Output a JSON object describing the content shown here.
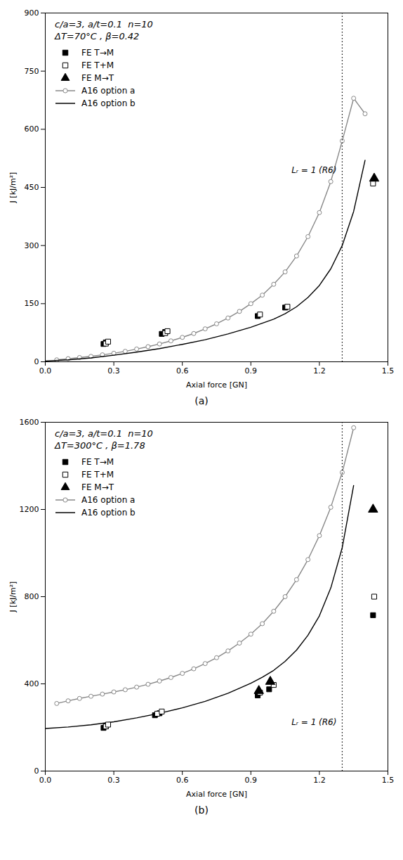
{
  "chart_data": [
    {
      "type": "line",
      "title": "c/a=3, a/t=0.1  n=10",
      "subtitle": "ΔT=70°C , β=0.42",
      "caption": "(a)",
      "xlabel": "Axial force [GN]",
      "ylabel": "J [kJ/m²]",
      "xlim": [
        0,
        1.5
      ],
      "ylim": [
        0,
        900
      ],
      "xticks": [
        {
          "value": 0,
          "label": "0.0"
        },
        0.3,
        0.6,
        0.9,
        1.2,
        1.5
      ],
      "yticks": [
        0,
        150,
        300,
        450,
        600,
        750,
        900
      ],
      "grid": false,
      "legend": "upper left",
      "vlines": [
        {
          "x": 1.3,
          "line_style": "dotted",
          "label": "Lᵣ = 1 (R6)",
          "label_y": 495
        }
      ],
      "series": [
        {
          "name": "FE T→M",
          "type": "scatter",
          "marker": "filled_square",
          "color": "#000000",
          "x": [
            0.255,
            0.265,
            0.51,
            0.525,
            0.93,
            1.05
          ],
          "values": [
            46,
            50,
            72,
            77,
            118,
            140
          ]
        },
        {
          "name": "FE T+M",
          "type": "scatter",
          "marker": "open_square",
          "color": "#000000",
          "x": [
            0.265,
            0.275,
            0.525,
            0.535,
            0.94,
            1.06,
            1.435
          ],
          "values": [
            47,
            52,
            74,
            79,
            122,
            142,
            460
          ]
        },
        {
          "name": "FE M→T",
          "type": "scatter",
          "marker": "filled_triangle",
          "color": "#000000",
          "x": [
            1.44
          ],
          "values": [
            473
          ]
        },
        {
          "name": "A16 option a",
          "type": "line",
          "marker": "open_circle",
          "line_style": "solid",
          "color": "#888888",
          "x": [
            0.05,
            0.1,
            0.15,
            0.2,
            0.25,
            0.3,
            0.35,
            0.4,
            0.45,
            0.5,
            0.55,
            0.6,
            0.65,
            0.7,
            0.75,
            0.8,
            0.85,
            0.9,
            0.95,
            1.0,
            1.05,
            1.1,
            1.15,
            1.2,
            1.25,
            1.3,
            1.35,
            1.4
          ],
          "values": [
            5,
            8,
            11,
            14,
            18,
            22,
            27,
            33,
            39,
            46,
            54,
            63,
            73,
            85,
            98,
            113,
            130,
            150,
            172,
            200,
            232,
            273,
            323,
            385,
            465,
            570,
            680,
            640
          ]
        },
        {
          "name": "A16 option b",
          "type": "line",
          "line_style": "solid",
          "color": "#000000",
          "x": [
            0,
            0.1,
            0.2,
            0.3,
            0.4,
            0.5,
            0.6,
            0.7,
            0.8,
            0.9,
            1.0,
            1.05,
            1.1,
            1.15,
            1.2,
            1.25,
            1.3,
            1.35,
            1.4
          ],
          "values": [
            2,
            5,
            10,
            17,
            25,
            34,
            45,
            57,
            72,
            89,
            110,
            124,
            142,
            166,
            197,
            240,
            300,
            388,
            520
          ]
        }
      ]
    },
    {
      "type": "line",
      "title": "c/a=3, a/t=0.1  n=10",
      "subtitle": "ΔT=300°C , β=1.78",
      "caption": "(b)",
      "xlabel": "Axial force [GN]",
      "ylabel": "J [kJ/m²]",
      "xlim": [
        0,
        1.5
      ],
      "ylim": [
        0,
        1600
      ],
      "xticks": [
        {
          "value": 0,
          "label": "0.0"
        },
        0.3,
        0.6,
        0.9,
        1.2,
        1.5
      ],
      "yticks": [
        0,
        400,
        800,
        1200,
        1600
      ],
      "grid": false,
      "legend": "upper left",
      "vlines": [
        {
          "x": 1.3,
          "line_style": "dotted",
          "label": "Lᵣ = 1 (R6)",
          "label_y": 224
        }
      ],
      "series": [
        {
          "name": "FE T→M",
          "type": "scatter",
          "marker": "filled_square",
          "color": "#000000",
          "x": [
            0.255,
            0.265,
            0.48,
            0.5,
            0.93,
            0.98,
            1.435
          ],
          "values": [
            198,
            205,
            256,
            265,
            347,
            375,
            715
          ]
        },
        {
          "name": "FE T+M",
          "type": "scatter",
          "marker": "open_square",
          "color": "#000000",
          "x": [
            0.265,
            0.275,
            0.49,
            0.51,
            0.94,
            1.0,
            1.44
          ],
          "values": [
            205,
            213,
            263,
            273,
            360,
            395,
            800
          ]
        },
        {
          "name": "FE M→T",
          "type": "scatter",
          "marker": "filled_triangle",
          "color": "#000000",
          "x": [
            0.935,
            0.985,
            1.435
          ],
          "values": [
            368,
            410,
            1200
          ]
        },
        {
          "name": "A16 option a",
          "type": "line",
          "marker": "open_circle",
          "line_style": "solid",
          "color": "#888888",
          "x": [
            0.05,
            0.1,
            0.15,
            0.2,
            0.25,
            0.3,
            0.35,
            0.4,
            0.45,
            0.5,
            0.55,
            0.6,
            0.65,
            0.7,
            0.75,
            0.8,
            0.85,
            0.9,
            0.95,
            1.0,
            1.05,
            1.1,
            1.15,
            1.2,
            1.25,
            1.3,
            1.35
          ],
          "values": [
            310,
            322,
            333,
            343,
            353,
            363,
            373,
            385,
            398,
            413,
            429,
            448,
            469,
            493,
            520,
            551,
            587,
            628,
            676,
            733,
            800,
            878,
            970,
            1080,
            1210,
            1370,
            1575
          ]
        },
        {
          "name": "A16 option b",
          "type": "line",
          "line_style": "solid",
          "color": "#000000",
          "x": [
            0,
            0.1,
            0.2,
            0.3,
            0.4,
            0.5,
            0.6,
            0.7,
            0.8,
            0.9,
            0.95,
            1.0,
            1.05,
            1.1,
            1.15,
            1.2,
            1.25,
            1.3,
            1.35
          ],
          "values": [
            195,
            202,
            212,
            226,
            244,
            265,
            290,
            320,
            357,
            403,
            430,
            462,
            503,
            555,
            623,
            712,
            840,
            1025,
            1310
          ]
        }
      ]
    }
  ]
}
